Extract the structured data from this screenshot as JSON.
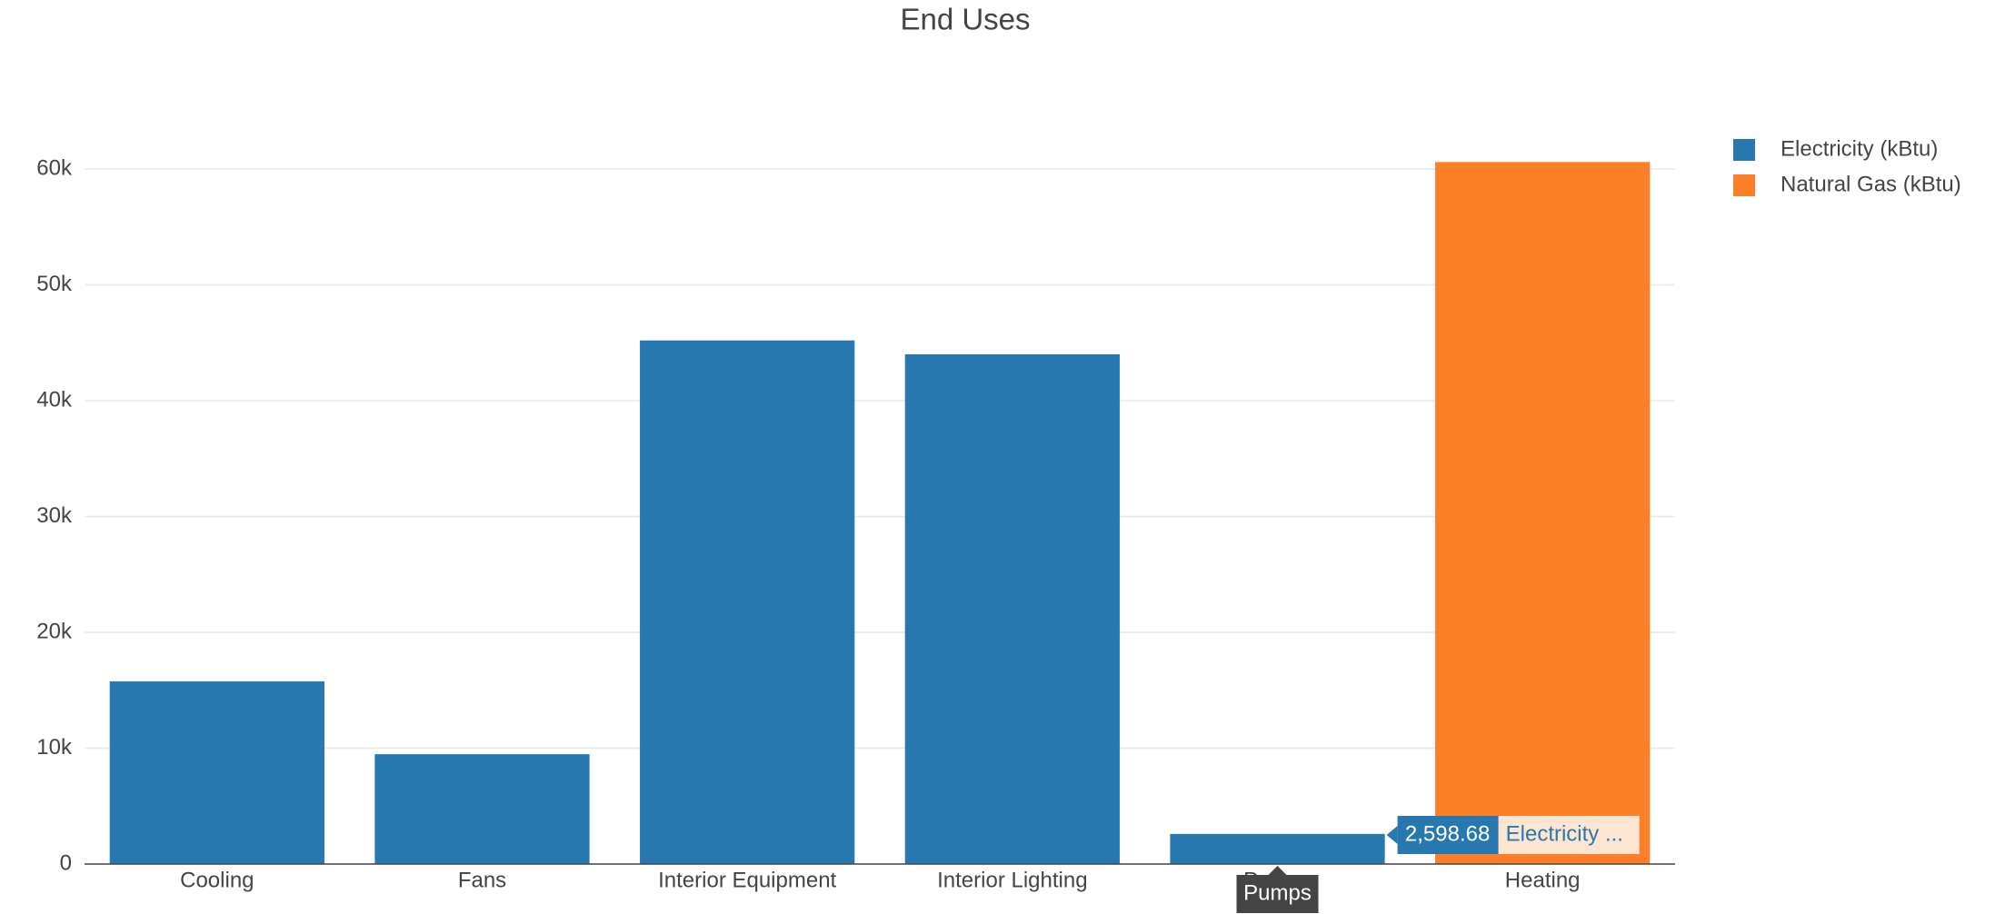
{
  "chart_data": {
    "type": "bar",
    "title": "End Uses",
    "categories": [
      "Cooling",
      "Fans",
      "Interior Equipment",
      "Interior Lighting",
      "Pumps",
      "Heating"
    ],
    "series": [
      {
        "name": "Electricity (kBtu)",
        "color": "#2878b0",
        "values": [
          15770,
          9480,
          45200,
          44000,
          2598.68,
          null
        ]
      },
      {
        "name": "Natural Gas (kBtu)",
        "color": "#fd7f28",
        "values": [
          null,
          null,
          null,
          null,
          null,
          60600
        ]
      }
    ],
    "ylim": [
      0,
      64000
    ],
    "yticks": [
      0,
      {
        "value": 10000,
        "label": "10k"
      },
      {
        "value": 20000,
        "label": "20k"
      },
      {
        "value": 30000,
        "label": "30k"
      },
      {
        "value": 40000,
        "label": "40k"
      },
      {
        "value": 50000,
        "label": "50k"
      },
      {
        "value": 60000,
        "label": "60k"
      }
    ],
    "grid": true,
    "legend": "right",
    "hover": {
      "value_label": "2,598.68",
      "series_label": "Electricity ..."
    }
  }
}
